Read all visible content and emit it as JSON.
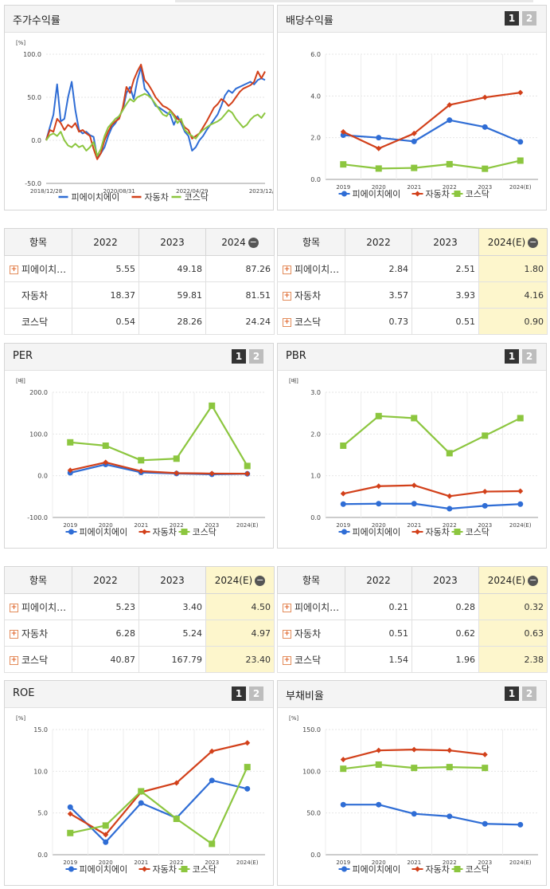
{
  "colors": {
    "series1": "#2f6dd5",
    "series2": "#d2401a",
    "series3": "#8cc63f",
    "highlight": "#fdf6cc"
  },
  "series_names": [
    "피에이치에이",
    "자동차",
    "코스닥"
  ],
  "charts": {
    "price_return": {
      "title": "주가수익률",
      "unit": "[%]",
      "chart_data": {
        "type": "line",
        "title": "주가수익률",
        "ylabel": "[%]",
        "ylim": [
          -50,
          100
        ],
        "yticks": [
          -50.0,
          0.0,
          50.0,
          100.0
        ],
        "ytick_labels": [
          "-50.0",
          "0.0",
          "50.0",
          "100.0"
        ],
        "xlim": [
          0,
          60
        ],
        "xtick_positions": [
          0,
          20,
          40,
          60
        ],
        "xtick_labels": [
          "2018/12/28",
          "2020/08/31",
          "2022/04/29",
          "2023/12/28"
        ],
        "series": [
          {
            "name": "피에이치에이",
            "x": [
              0,
              1,
              2,
              3,
              4,
              5,
              6,
              7,
              8,
              9,
              10,
              11,
              12,
              13,
              14,
              15,
              16,
              17,
              18,
              19,
              20,
              21,
              22,
              23,
              24,
              25,
              26,
              27,
              28,
              29,
              30,
              31,
              32,
              33,
              34,
              35,
              36,
              37,
              38,
              39,
              40,
              41,
              42,
              43,
              44,
              45,
              46,
              47,
              48,
              49,
              50,
              51,
              52,
              53,
              54,
              55,
              56,
              57,
              58,
              59,
              60
            ],
            "values": [
              0,
              15,
              30,
              65,
              22,
              25,
              50,
              68,
              35,
              12,
              8,
              10,
              6,
              4,
              -20,
              -15,
              -8,
              5,
              15,
              20,
              28,
              35,
              55,
              62,
              48,
              70,
              85,
              60,
              55,
              48,
              40,
              38,
              35,
              32,
              30,
              18,
              28,
              20,
              10,
              5,
              -12,
              -8,
              0,
              5,
              12,
              18,
              24,
              30,
              40,
              52,
              58,
              55,
              60,
              62,
              64,
              66,
              68,
              65,
              70,
              72,
              70
            ]
          },
          {
            "name": "자동차",
            "x": [
              0,
              1,
              2,
              3,
              4,
              5,
              6,
              7,
              8,
              9,
              10,
              11,
              12,
              13,
              14,
              15,
              16,
              17,
              18,
              19,
              20,
              21,
              22,
              23,
              24,
              25,
              26,
              27,
              28,
              29,
              30,
              31,
              32,
              33,
              34,
              35,
              36,
              37,
              38,
              39,
              40,
              41,
              42,
              43,
              44,
              45,
              46,
              47,
              48,
              49,
              50,
              51,
              52,
              53,
              54,
              55,
              56,
              57,
              58,
              59,
              60
            ],
            "values": [
              0,
              12,
              10,
              25,
              20,
              12,
              18,
              15,
              20,
              10,
              12,
              8,
              5,
              -10,
              -22,
              -15,
              0,
              10,
              18,
              22,
              25,
              38,
              62,
              55,
              70,
              80,
              88,
              70,
              65,
              58,
              50,
              45,
              40,
              38,
              35,
              30,
              25,
              22,
              15,
              12,
              2,
              5,
              8,
              15,
              22,
              30,
              38,
              42,
              48,
              45,
              40,
              44,
              50,
              56,
              60,
              62,
              64,
              68,
              80,
              72,
              80
            ]
          },
          {
            "name": "코스닥",
            "x": [
              0,
              1,
              2,
              3,
              4,
              5,
              6,
              7,
              8,
              9,
              10,
              11,
              12,
              13,
              14,
              15,
              16,
              17,
              18,
              19,
              20,
              21,
              22,
              23,
              24,
              25,
              26,
              27,
              28,
              29,
              30,
              31,
              32,
              33,
              34,
              35,
              36,
              37,
              38,
              39,
              40,
              41,
              42,
              43,
              44,
              45,
              46,
              47,
              48,
              49,
              50,
              51,
              52,
              53,
              54,
              55,
              56,
              57,
              58,
              59,
              60
            ],
            "values": [
              0,
              6,
              8,
              5,
              10,
              0,
              -6,
              -8,
              -4,
              -8,
              -6,
              -12,
              -8,
              -2,
              -18,
              -10,
              5,
              15,
              20,
              25,
              28,
              35,
              42,
              48,
              45,
              50,
              52,
              54,
              52,
              48,
              42,
              36,
              30,
              28,
              34,
              28,
              20,
              25,
              12,
              8,
              5,
              2,
              8,
              12,
              15,
              18,
              20,
              22,
              25,
              30,
              35,
              32,
              25,
              20,
              15,
              18,
              24,
              28,
              30,
              26,
              32
            ]
          }
        ]
      }
    },
    "dividend_yield": {
      "title": "배당수익률",
      "unit": "",
      "chart_data": {
        "type": "line",
        "title": "배당수익률",
        "ylim": [
          0,
          6
        ],
        "yticks": [
          0.0,
          2.0,
          4.0,
          6.0
        ],
        "ytick_labels": [
          "0.0",
          "2.0",
          "4.0",
          "6.0"
        ],
        "categories": [
          "2019",
          "2020",
          "2021",
          "2022",
          "2023",
          "2024(E)"
        ],
        "series": [
          {
            "name": "피에이치에이",
            "values": [
              2.12,
              2.0,
              1.82,
              2.84,
              2.51,
              1.8
            ]
          },
          {
            "name": "자동차",
            "values": [
              2.28,
              1.48,
              2.2,
              3.57,
              3.93,
              4.16
            ]
          },
          {
            "name": "코스닥",
            "values": [
              0.72,
              0.52,
              0.55,
              0.73,
              0.51,
              0.9
            ]
          }
        ]
      }
    },
    "per": {
      "title": "PER",
      "unit": "[배]",
      "chart_data": {
        "type": "line",
        "title": "PER",
        "ylabel": "[배]",
        "ylim": [
          -100,
          200
        ],
        "yticks": [
          -100.0,
          0.0,
          100.0,
          200.0
        ],
        "ytick_labels": [
          "-100.0",
          "0.0",
          "100.0",
          "200.0"
        ],
        "categories": [
          "2019",
          "2020",
          "2021",
          "2022",
          "2023",
          "2024(E)"
        ],
        "series": [
          {
            "name": "피에이치에이",
            "values": [
              7,
              27,
              8,
              5.23,
              3.4,
              4.5
            ]
          },
          {
            "name": "자동차",
            "values": [
              13,
              32,
              11,
              6.28,
              5.24,
              4.97
            ]
          },
          {
            "name": "코스닥",
            "values": [
              80,
              72,
              37,
              40.87,
              167.79,
              23.4
            ]
          }
        ]
      }
    },
    "pbr": {
      "title": "PBR",
      "unit": "[배]",
      "chart_data": {
        "type": "line",
        "title": "PBR",
        "ylabel": "[배]",
        "ylim": [
          0,
          3
        ],
        "yticks": [
          0.0,
          1.0,
          2.0,
          3.0
        ],
        "ytick_labels": [
          "0.0",
          "1.0",
          "2.0",
          "3.0"
        ],
        "categories": [
          "2019",
          "2020",
          "2021",
          "2022",
          "2023",
          "2024(E)"
        ],
        "series": [
          {
            "name": "피에이치에이",
            "values": [
              0.32,
              0.33,
              0.33,
              0.21,
              0.28,
              0.32
            ]
          },
          {
            "name": "자동차",
            "values": [
              0.57,
              0.75,
              0.77,
              0.51,
              0.62,
              0.63
            ]
          },
          {
            "name": "코스닥",
            "values": [
              1.72,
              2.43,
              2.38,
              1.54,
              1.96,
              2.38
            ]
          }
        ]
      }
    },
    "roe": {
      "title": "ROE",
      "unit": "[%]",
      "chart_data": {
        "type": "line",
        "title": "ROE",
        "ylabel": "[%]",
        "ylim": [
          0,
          15
        ],
        "yticks": [
          0.0,
          5.0,
          10.0,
          15.0
        ],
        "ytick_labels": [
          "0.0",
          "5.0",
          "10.0",
          "15.0"
        ],
        "categories": [
          "2019",
          "2020",
          "2021",
          "2022",
          "2023",
          "2024(E)"
        ],
        "series": [
          {
            "name": "피에이치에이",
            "values": [
              5.7,
              1.5,
              6.2,
              4.4,
              8.9,
              7.9
            ]
          },
          {
            "name": "자동차",
            "values": [
              4.9,
              2.4,
              7.5,
              8.6,
              12.4,
              13.4
            ]
          },
          {
            "name": "코스닥",
            "values": [
              2.6,
              3.5,
              7.6,
              4.3,
              1.3,
              10.5
            ]
          }
        ]
      }
    },
    "debt_ratio": {
      "title": "부채비율",
      "unit": "[%]",
      "chart_data": {
        "type": "line",
        "title": "부채비율",
        "ylabel": "[%]",
        "ylim": [
          0,
          150
        ],
        "yticks": [
          0.0,
          50.0,
          100.0,
          150.0
        ],
        "ytick_labels": [
          "0.0",
          "50.0",
          "100.0",
          "150.0"
        ],
        "categories": [
          "2019",
          "2020",
          "2021",
          "2022",
          "2023",
          "2024(E)"
        ],
        "series": [
          {
            "name": "피에이치에이",
            "values": [
              60,
              60,
              49,
              46,
              37,
              36
            ]
          },
          {
            "name": "자동차",
            "values": [
              114,
              125,
              126,
              125,
              120,
              null
            ]
          },
          {
            "name": "코스닥",
            "values": [
              103,
              108,
              104,
              105,
              104,
              null
            ]
          }
        ]
      }
    }
  },
  "tables": {
    "price_return": {
      "headers": [
        "항목",
        "2022",
        "2023",
        "2024"
      ],
      "rows": [
        {
          "name": "피에이치…",
          "values": [
            "5.55",
            "49.18",
            "87.26"
          ]
        },
        {
          "name": "자동차",
          "values": [
            "18.37",
            "59.81",
            "81.51"
          ]
        },
        {
          "name": "코스닥",
          "values": [
            "0.54",
            "28.26",
            "24.24"
          ]
        }
      ]
    },
    "dividend_yield": {
      "headers": [
        "항목",
        "2022",
        "2023",
        "2024(E)"
      ],
      "rows": [
        {
          "name": "피에이치…",
          "values": [
            "2.84",
            "2.51",
            "1.80"
          ]
        },
        {
          "name": "자동차",
          "values": [
            "3.57",
            "3.93",
            "4.16"
          ]
        },
        {
          "name": "코스닥",
          "values": [
            "0.73",
            "0.51",
            "0.90"
          ]
        }
      ]
    },
    "per": {
      "headers": [
        "항목",
        "2022",
        "2023",
        "2024(E)"
      ],
      "rows": [
        {
          "name": "피에이치…",
          "values": [
            "5.23",
            "3.40",
            "4.50"
          ]
        },
        {
          "name": "자동차",
          "values": [
            "6.28",
            "5.24",
            "4.97"
          ]
        },
        {
          "name": "코스닥",
          "values": [
            "40.87",
            "167.79",
            "23.40"
          ]
        }
      ]
    },
    "pbr": {
      "headers": [
        "항목",
        "2022",
        "2023",
        "2024(E)"
      ],
      "rows": [
        {
          "name": "피에이치…",
          "values": [
            "0.21",
            "0.28",
            "0.32"
          ]
        },
        {
          "name": "자동차",
          "values": [
            "0.51",
            "0.62",
            "0.63"
          ]
        },
        {
          "name": "코스닥",
          "values": [
            "1.54",
            "1.96",
            "2.38"
          ]
        }
      ]
    }
  },
  "page_labels": {
    "page1": "1",
    "page2": "2",
    "expand": "+",
    "collapse": "−"
  }
}
